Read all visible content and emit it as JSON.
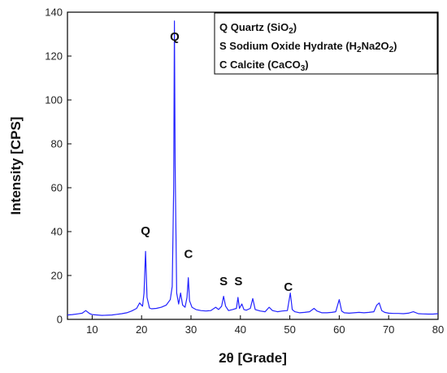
{
  "chart_data": {
    "type": "line",
    "xlabel": "2θ [Grade]",
    "ylabel": "Intensity [CPS]",
    "xlim": [
      5,
      80
    ],
    "ylim": [
      0,
      140
    ],
    "xticks": [
      10,
      20,
      30,
      40,
      50,
      60,
      70,
      80
    ],
    "yticks": [
      0,
      20,
      40,
      60,
      80,
      100,
      120,
      140
    ],
    "grid": false,
    "legend_position": "top-right",
    "series_color": "#2323ff",
    "series": [
      {
        "x": [
          5,
          6,
          7,
          8,
          8.7,
          9.5,
          10,
          11,
          12,
          13,
          14,
          15,
          16,
          17,
          18,
          19,
          19.6,
          20.2,
          20.5,
          20.8,
          21.1,
          21.6,
          22,
          23,
          24,
          25,
          25.8,
          26.2,
          26.5,
          26.65,
          26.8,
          27.1,
          27.5,
          27.9,
          28.3,
          28.8,
          29.2,
          29.45,
          29.7,
          30.2,
          31,
          32,
          33,
          34,
          35,
          35.6,
          36.2,
          36.6,
          37,
          37.6,
          38.4,
          39.2,
          39.5,
          39.8,
          40.3,
          40.7,
          41.2,
          42,
          42.5,
          43,
          44,
          45,
          45.8,
          46.5,
          47.5,
          48.5,
          49.5,
          50.1,
          50.5,
          51,
          52,
          53,
          54,
          54.9,
          55.5,
          56.5,
          57.5,
          58.5,
          59.3,
          60,
          60.5,
          61,
          62,
          63,
          64,
          65,
          66,
          67,
          67.6,
          68.1,
          68.6,
          69.2,
          70,
          71,
          72,
          73,
          74,
          75,
          76,
          77,
          78,
          79,
          80
        ],
        "y": [
          2.0,
          2.2,
          2.5,
          2.8,
          4.0,
          2.6,
          2.2,
          2.0,
          1.8,
          1.9,
          2.0,
          2.3,
          2.6,
          3.0,
          3.8,
          5.0,
          7.5,
          6.0,
          12.0,
          31.0,
          10.0,
          5.2,
          4.8,
          5.0,
          5.5,
          6.5,
          9.0,
          15.0,
          60.0,
          136.0,
          70.0,
          12.0,
          7.0,
          12.0,
          6.5,
          5.5,
          10.0,
          19.0,
          8.5,
          5.5,
          4.5,
          4.0,
          3.8,
          4.0,
          5.5,
          4.5,
          6.0,
          10.5,
          6.0,
          4.0,
          4.5,
          5.0,
          10.0,
          5.0,
          7.0,
          4.5,
          4.2,
          5.0,
          9.5,
          4.5,
          3.8,
          3.5,
          5.5,
          4.0,
          3.5,
          3.8,
          4.0,
          12.0,
          4.5,
          3.5,
          3.0,
          3.2,
          3.5,
          5.0,
          3.8,
          3.0,
          3.0,
          3.2,
          3.5,
          9.0,
          3.8,
          3.0,
          2.8,
          3.0,
          3.2,
          3.0,
          3.2,
          3.5,
          6.5,
          7.5,
          4.0,
          3.2,
          2.8,
          2.7,
          2.7,
          2.6,
          2.8,
          3.5,
          2.6,
          2.5,
          2.4,
          2.4,
          2.6
        ]
      }
    ],
    "annotations": [
      {
        "text": "Q",
        "x": 20.8,
        "y": 38.5
      },
      {
        "text": "Q",
        "x": 26.7,
        "y": 127
      },
      {
        "text": "C",
        "x": 29.5,
        "y": 28
      },
      {
        "text": "S",
        "x": 36.6,
        "y": 15.5
      },
      {
        "text": "S",
        "x": 39.6,
        "y": 15.5
      },
      {
        "text": "C",
        "x": 49.7,
        "y": 13
      }
    ],
    "legend": [
      {
        "text": "Q Quartz (SiO2)",
        "prefix": "Q Quartz (SiO",
        "sub": "2",
        "suffix": ")"
      },
      {
        "text": "S  Sodium Oxide Hydrate (H2Na2O2)",
        "prefix": "S  Sodium Oxide Hydrate (H",
        "sub": "2",
        "mid": "Na2O",
        "sub2": "2",
        "suffix": ")"
      },
      {
        "text": "C Calcite (CaCO3)",
        "prefix": "C Calcite (CaCO",
        "sub": "3",
        "suffix": ")"
      }
    ]
  }
}
